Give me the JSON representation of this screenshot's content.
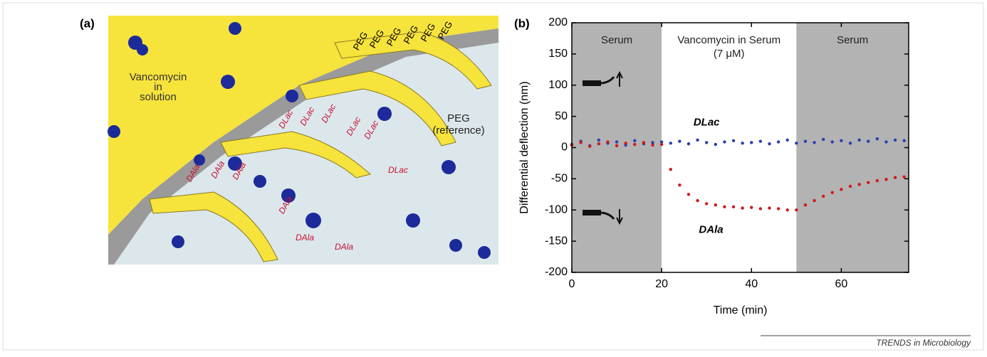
{
  "panel_a": {
    "label": "(a)",
    "solution_text": [
      "Vancomycin",
      "in",
      "solution"
    ],
    "reference_text": [
      "PEG",
      "(reference)"
    ],
    "peg_labels": [
      "PEG",
      "PEG",
      "PEG",
      "PEG",
      "PEG",
      "PEG"
    ],
    "dlac_labels": [
      "DLac",
      "DLac",
      "DLac",
      "DLac",
      "DLac",
      "DLac"
    ],
    "dala_labels": [
      "DAla",
      "DAla",
      "DAla",
      "DAla",
      "DAla",
      "DAla"
    ]
  },
  "chart_data": {
    "type": "scatter",
    "label": "(b)",
    "xlabel": "Time (min)",
    "ylabel": "Differential deflection (nm)",
    "xlim": [
      0,
      75
    ],
    "ylim": [
      -200,
      200
    ],
    "xticks": [
      0,
      20,
      40,
      60
    ],
    "yticks": [
      -200,
      -150,
      -100,
      -50,
      0,
      50,
      100,
      150,
      200
    ],
    "regions": [
      {
        "from": 0,
        "to": 20,
        "color": "#b3b3b3",
        "label": "Serum"
      },
      {
        "from": 20,
        "to": 50,
        "color": "#ffffff",
        "label": "Vancomycin in Serum",
        "sublabel": "(7 μM)"
      },
      {
        "from": 50,
        "to": 75,
        "color": "#b3b3b3",
        "label": "Serum"
      }
    ],
    "x": [
      0,
      2,
      4,
      6,
      8,
      10,
      12,
      14,
      16,
      18,
      20,
      22,
      24,
      26,
      28,
      30,
      32,
      34,
      36,
      38,
      40,
      42,
      44,
      46,
      48,
      50,
      52,
      54,
      56,
      58,
      60,
      62,
      64,
      66,
      68,
      70,
      72,
      74
    ],
    "series": [
      {
        "name": "DLac",
        "color": "#2a3fae",
        "values": [
          5,
          10,
          3,
          12,
          7,
          9,
          4,
          11,
          6,
          8,
          9,
          7,
          10,
          6,
          12,
          8,
          5,
          9,
          11,
          7,
          8,
          10,
          6,
          9,
          12,
          7,
          10,
          8,
          13,
          9,
          11,
          7,
          12,
          10,
          14,
          9,
          12,
          11
        ]
      },
      {
        "name": "DAla",
        "color": "#d01a1a",
        "values": [
          4,
          8,
          2,
          6,
          9,
          3,
          7,
          5,
          8,
          4,
          5,
          -35,
          -60,
          -75,
          -85,
          -90,
          -92,
          -95,
          -95,
          -97,
          -96,
          -98,
          -97,
          -98,
          -100,
          -100,
          -92,
          -85,
          -78,
          -72,
          -67,
          -62,
          -59,
          -56,
          -53,
          -51,
          -48,
          -47
        ]
      }
    ]
  },
  "footer": "TRENDS in Microbiology"
}
